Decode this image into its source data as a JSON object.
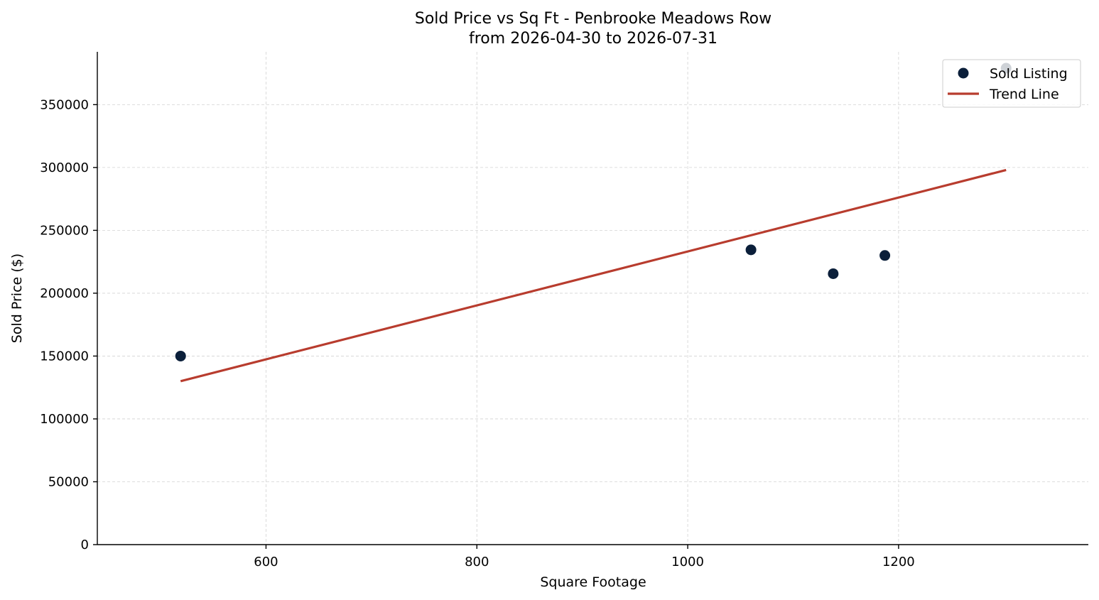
{
  "chart_data": {
    "type": "scatter",
    "title": "Sold Price vs Sq Ft - Penbrooke Meadows Row",
    "subtitle": "from 2026-04-30 to 2026-07-31",
    "xlabel": "Square Footage",
    "ylabel": "Sold Price ($)",
    "xlim": [
      440,
      1380
    ],
    "ylim": [
      0,
      392000
    ],
    "xticks": [
      600,
      800,
      1000,
      1200
    ],
    "yticks": [
      0,
      50000,
      100000,
      150000,
      200000,
      250000,
      300000,
      350000
    ],
    "grid": true,
    "legend_position": "top-right",
    "series": [
      {
        "name": "Sold Listing",
        "kind": "scatter",
        "color": "#0b1f3a",
        "points": [
          {
            "x": 519,
            "y": 150000
          },
          {
            "x": 1060,
            "y": 234500
          },
          {
            "x": 1138,
            "y": 215500
          },
          {
            "x": 1187,
            "y": 230000
          },
          {
            "x": 1302,
            "y": 379000
          }
        ]
      },
      {
        "name": "Trend Line",
        "kind": "line",
        "color": "#b83c2e",
        "points": [
          {
            "x": 519,
            "y": 130000
          },
          {
            "x": 1302,
            "y": 298000
          }
        ]
      }
    ]
  }
}
